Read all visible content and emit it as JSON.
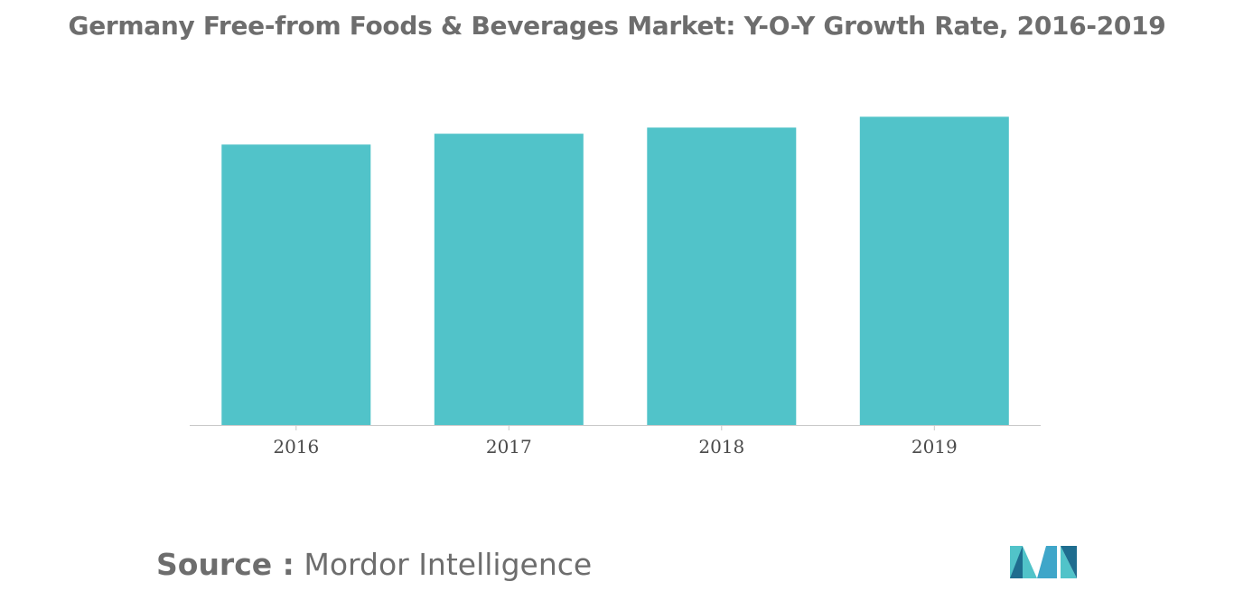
{
  "chart_data": {
    "type": "bar",
    "title": "Germany Free-from Foods & Beverages Market: Y-O-Y Growth Rate, 2016-2019",
    "categories": [
      "2016",
      "2017",
      "2018",
      "2019"
    ],
    "values": [
      0.91,
      0.945,
      0.965,
      1.0
    ],
    "xlabel": "",
    "ylabel": "",
    "ylim": [
      0,
      1.13
    ],
    "grid": false,
    "legend": "none",
    "bar_color": "#51c3c9",
    "axis_color": "#c8c8c8"
  },
  "footer": {
    "source_label": "Source :",
    "source_value": "Mordor Intelligence"
  },
  "brand": {
    "logo_icon": "mordor-intelligence-logo-icon",
    "colors": [
      "#1f6d8f",
      "#3fa6c9",
      "#51c3c9"
    ]
  }
}
